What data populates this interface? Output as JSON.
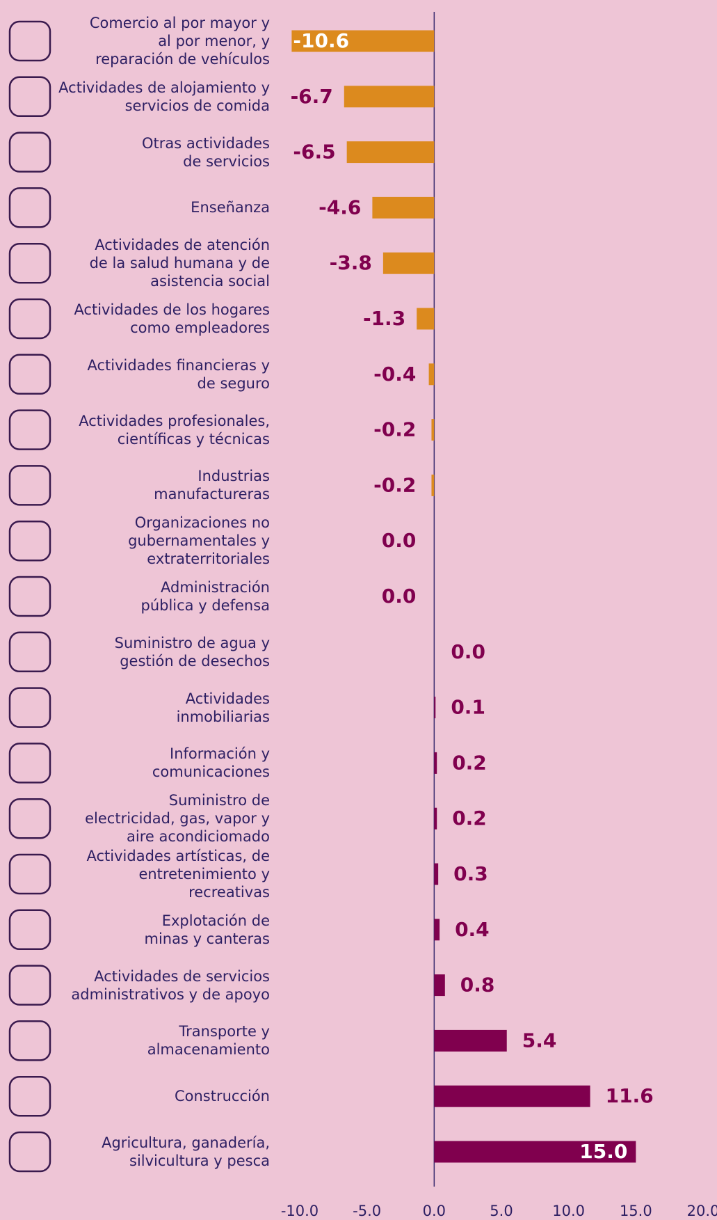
{
  "chart_data": {
    "type": "bar",
    "orientation": "horizontal",
    "categories": [
      "Comercio al por mayor y\nal por menor, y\nreparación de vehículos",
      "Actividades de alojamiento y\nservicios de comida",
      "Otras actividades\nde servicios",
      "Enseñanza",
      "Actividades de atención\nde la salud humana y de\nasistencia social",
      "Actividades de los hogares\ncomo empleadores",
      "Actividades financieras y\nde seguro",
      "Actividades profesionales,\ncientíficas y técnicas",
      "Industrias\nmanufactureras",
      "Organizaciones no\ngubernamentales y\nextraterritoriales",
      "Administración\npública y defensa",
      "Suministro de agua y\ngestión de desechos",
      "Actividades\ninmobiliarias",
      "Información y\ncomunicaciones",
      "Suministro de\nelectricidad, gas, vapor y\naire acondiciomado",
      "Actividades artísticas, de\nentretenimiento y\nrecreativas",
      "Explotación de\nminas y canteras",
      "Actividades de servicios\nadministrativos y de apoyo",
      "Transporte y\nalmacenamiento",
      "Construcción",
      "Agricultura, ganadería,\nsilvicultura y pesca"
    ],
    "values": [
      -10.6,
      -6.7,
      -6.5,
      -4.6,
      -3.8,
      -1.3,
      -0.4,
      -0.2,
      -0.2,
      -0.0,
      -0.0,
      0.0,
      0.1,
      0.2,
      0.2,
      0.3,
      0.4,
      0.8,
      5.4,
      11.6,
      15.0
    ],
    "value_labels": [
      "-10.6",
      "-6.7",
      "-6.5",
      "-4.6",
      "-3.8",
      "-1.3",
      "-0.4",
      "-0.2",
      "-0.2",
      "0.0",
      "0.0",
      "0.0",
      "0.1",
      "0.2",
      "0.2",
      "0.3",
      "0.4",
      "0.8",
      "5.4",
      "11.6",
      "15.0"
    ],
    "negative_color": "#dc8a1e",
    "positive_color": "#80004e",
    "xlim": [
      -10,
      20
    ],
    "xticks": [
      {
        "value": -10,
        "label": "-10.0"
      },
      {
        "value": -5,
        "label": "-5.0"
      },
      {
        "value": 0,
        "label": "0.0"
      },
      {
        "value": 5,
        "label": "5.0"
      },
      {
        "value": 10,
        "label": "10.0"
      },
      {
        "value": 15,
        "label": "15.0"
      },
      {
        "value": 20,
        "label": "20.0"
      }
    ],
    "grid": false
  }
}
